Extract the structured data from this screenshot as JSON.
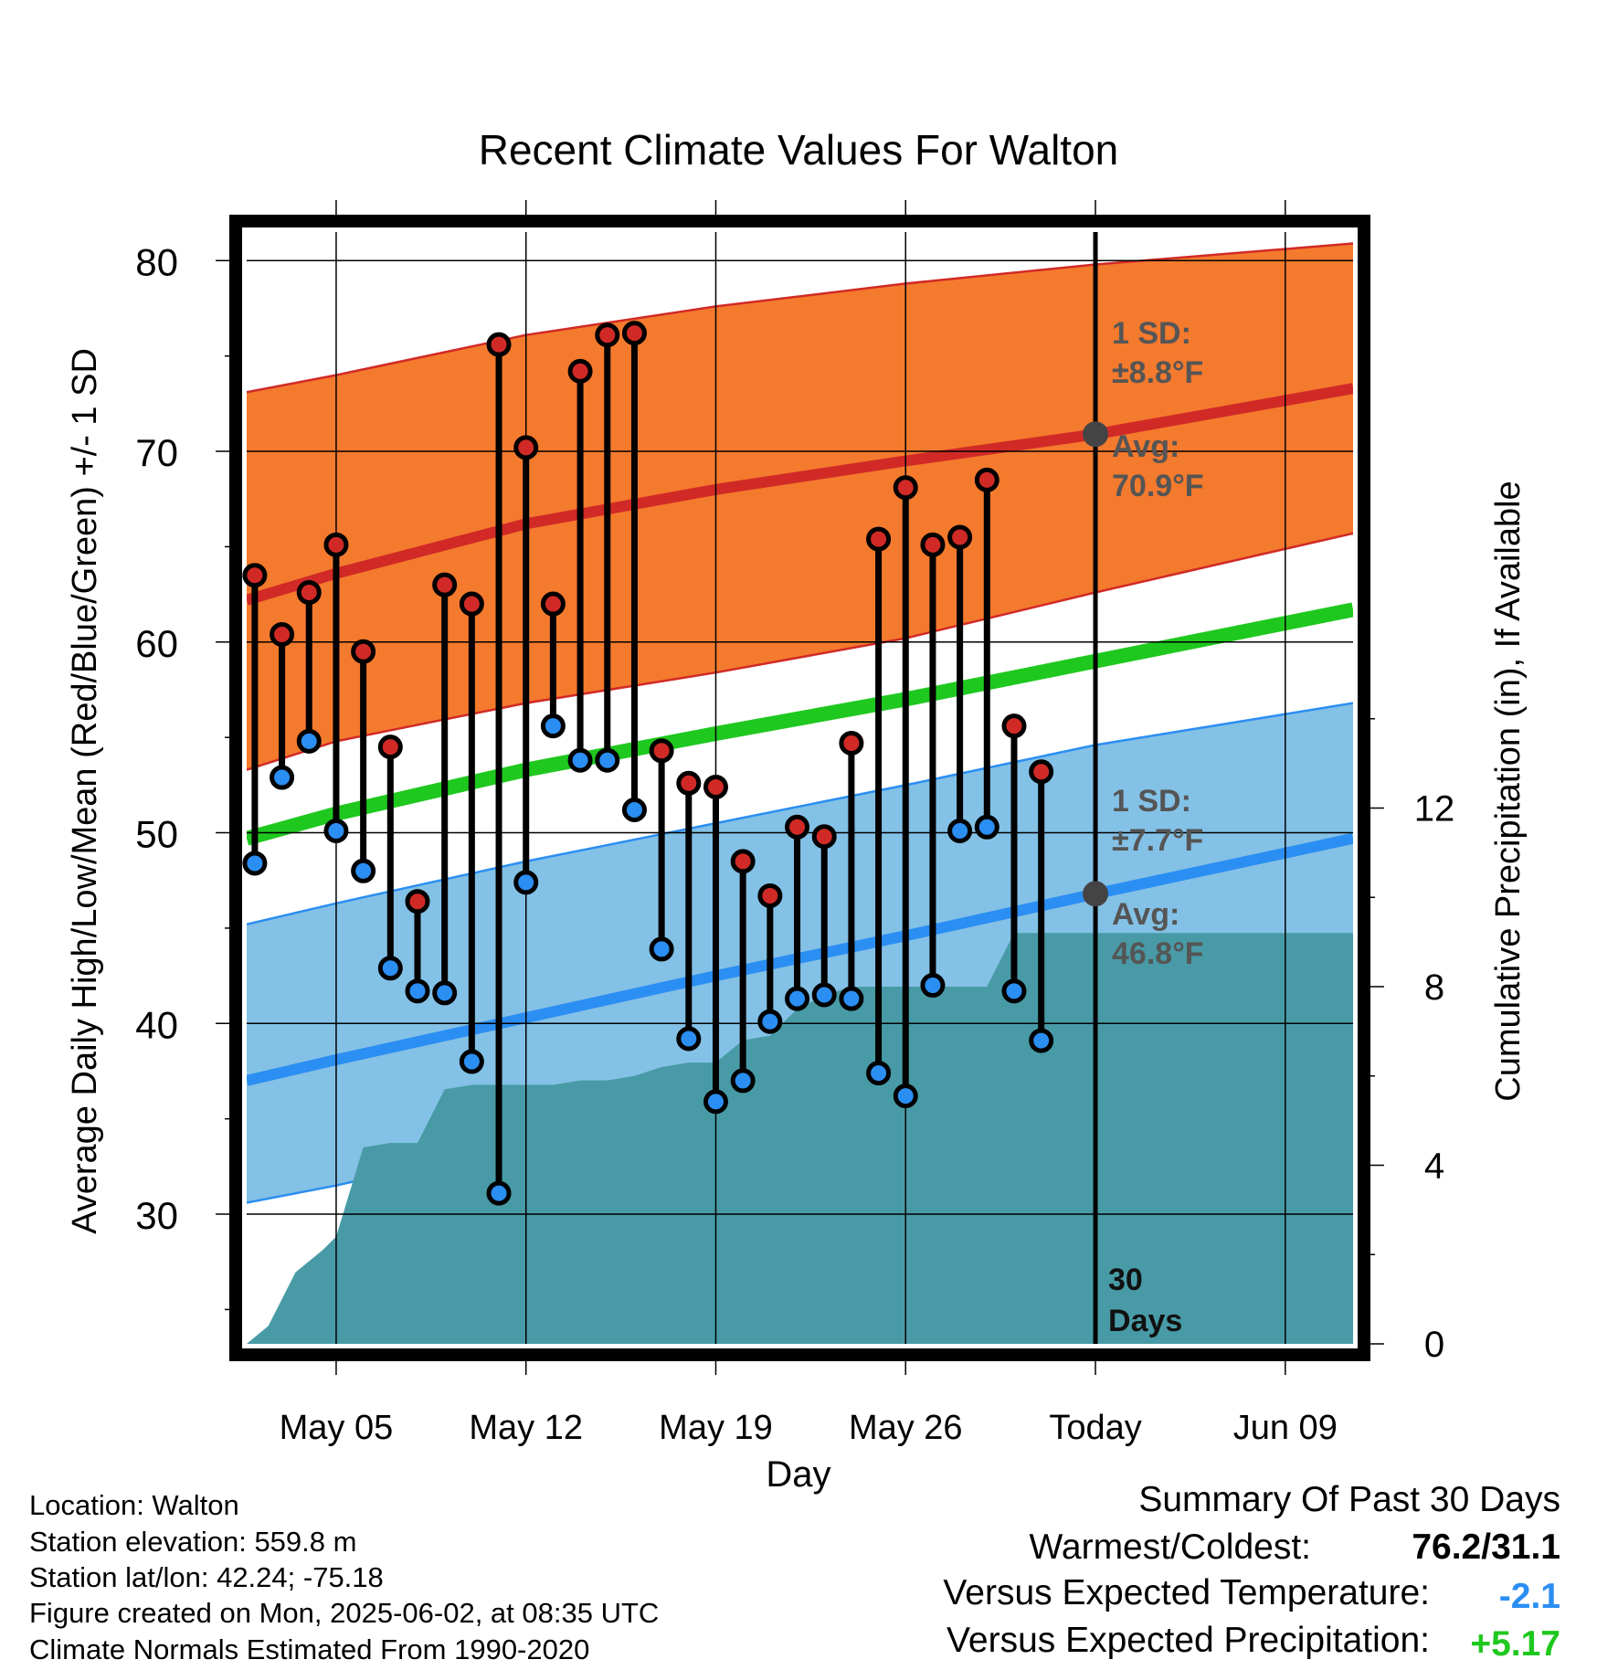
{
  "chart_data": {
    "type": "line",
    "title": "Recent Climate Values For Walton",
    "xlabel": "Day",
    "ylabel": "Average Daily High/Low/Mean (Red/Blue/Green) +/- 1 SD",
    "y2label": "Cumulative Precipitation (in), If Available",
    "x_ticks": [
      {
        "day": 5,
        "label": "May 05"
      },
      {
        "day": 12,
        "label": "May 12"
      },
      {
        "day": 19,
        "label": "May 19"
      },
      {
        "day": 26,
        "label": "May 26"
      },
      {
        "day": 33,
        "label": "Today"
      },
      {
        "day": 40,
        "label": "Jun 09"
      }
    ],
    "y_ticks": [
      "30",
      "40",
      "50",
      "60",
      "70",
      "80"
    ],
    "y2_ticks": [
      "0",
      "4",
      "8",
      "12"
    ],
    "x_range_days_of_may": [
      1.7,
      42.5
    ],
    "ylim": [
      23.2,
      81.5
    ],
    "y2lim": [
      0,
      24.9
    ],
    "normals": {
      "days": [
        1.7,
        5,
        12,
        19,
        26,
        33,
        42.5
      ],
      "high_avg": [
        62.2,
        63.6,
        66.2,
        68.0,
        69.5,
        70.9,
        73.3
      ],
      "high_sd_upper": [
        73.1,
        74.0,
        76.1,
        77.6,
        78.8,
        79.8,
        80.9
      ],
      "high_sd_lower": [
        53.3,
        54.8,
        56.8,
        58.4,
        60.2,
        62.6,
        65.7
      ],
      "low_avg": [
        37.0,
        38.1,
        40.3,
        42.5,
        44.6,
        46.8,
        49.7
      ],
      "low_sd_upper": [
        45.2,
        46.3,
        48.5,
        50.5,
        52.5,
        54.6,
        56.8
      ],
      "low_sd_lower": [
        30.6,
        31.5,
        33.8,
        35.7,
        37.5,
        39.5,
        42.3
      ],
      "mean_avg": [
        49.7,
        51.0,
        53.3,
        55.2,
        57.0,
        59.0,
        61.7
      ]
    },
    "observed": {
      "days": [
        2,
        3,
        4,
        5,
        6,
        7,
        8,
        9,
        10,
        11,
        12,
        13,
        14,
        15,
        16,
        17,
        18,
        19,
        20,
        21,
        22,
        23,
        24,
        25,
        26,
        27,
        28,
        29,
        30,
        31,
        32
      ],
      "high": [
        63.5,
        60.4,
        62.6,
        65.1,
        59.5,
        54.5,
        46.4,
        63.0,
        62.0,
        75.6,
        70.2,
        62.0,
        74.2,
        76.1,
        76.2,
        54.3,
        52.6,
        52.4,
        48.5,
        46.7,
        50.3,
        49.8,
        54.7,
        65.4,
        68.1,
        65.1,
        65.5,
        68.5,
        55.6,
        53.2,
        null
      ],
      "low": [
        48.4,
        52.9,
        54.8,
        50.1,
        48.0,
        42.9,
        41.7,
        41.6,
        38.0,
        31.1,
        47.4,
        55.6,
        53.8,
        53.8,
        51.2,
        43.9,
        39.2,
        35.9,
        37.0,
        40.1,
        41.3,
        41.5,
        41.3,
        37.4,
        36.2,
        42.0,
        50.1,
        50.3,
        41.7,
        39.1,
        null
      ]
    },
    "precip_cumulative": {
      "days": [
        1.7,
        2.5,
        3.5,
        4.5,
        5,
        6,
        7,
        8,
        9,
        10,
        11,
        12,
        13,
        14,
        15,
        16,
        17,
        18,
        19,
        20,
        21,
        22,
        23,
        24,
        25,
        26,
        27,
        28,
        29,
        30,
        31,
        33,
        42.5
      ],
      "values": [
        0,
        0.4,
        1.6,
        2.1,
        2.4,
        4.4,
        4.5,
        4.5,
        5.7,
        5.8,
        5.8,
        5.8,
        5.8,
        5.9,
        5.9,
        6.0,
        6.2,
        6.3,
        6.3,
        6.8,
        6.9,
        7.5,
        7.8,
        8.0,
        8.0,
        8.0,
        8.0,
        8.0,
        8.0,
        9.2,
        9.2,
        9.2,
        9.2
      ]
    },
    "annotations": {
      "high_sd": "1 SD:",
      "high_sd_value": "±8.8°F",
      "high_avg": "Avg:",
      "high_avg_value": "70.9°F",
      "low_sd": "1 SD:",
      "low_sd_value": "±7.7°F",
      "low_avg": "Avg:",
      "low_avg_value": "46.8°F",
      "days_count": "30",
      "days_word": "Days"
    },
    "grid": true,
    "colors": {
      "high_band": "#f47a2e",
      "high_line": "#d12a26",
      "low_band": "#84c1e6",
      "low_line": "#2b8ef2",
      "mean_line": "#1fc81f",
      "precip": "#489ba6",
      "high_dot": "#d12a26",
      "low_dot": "#2b8ef2",
      "today_dot": "#444444",
      "annotation_text": "#555555"
    }
  },
  "footer": {
    "location": "Location: Walton",
    "elevation": "Station elevation: 559.8 m",
    "latlon": "Station lat/lon: 42.24; -75.18",
    "created": "Figure created on Mon, 2025-06-02, at 08:35 UTC",
    "normals": "Climate Normals Estimated From 1990-2020"
  },
  "summary": {
    "title": "Summary Of Past 30 Days",
    "warmest_label": "Warmest/Coldest:",
    "warmest_value": "76.2/31.1",
    "temp_label": "Versus Expected Temperature:",
    "temp_value": "-2.1",
    "temp_color": "#2b8ef2",
    "precip_label": "Versus Expected Precipitation:",
    "precip_value": "+5.17",
    "precip_color": "#1fc81f"
  }
}
